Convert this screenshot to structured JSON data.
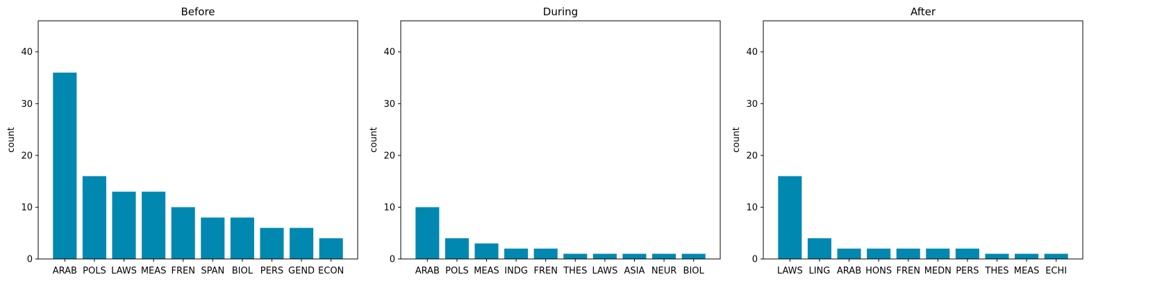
{
  "bar_color": "#0088b0",
  "chart_data": [
    {
      "type": "bar",
      "title": "Before",
      "xlabel": "",
      "ylabel": "count",
      "ylim": [
        0,
        46
      ],
      "yticks": [
        0,
        10,
        20,
        30,
        40
      ],
      "grid": false,
      "categories": [
        "ARAB",
        "POLS",
        "LAWS",
        "MEAS",
        "FREN",
        "SPAN",
        "BIOL",
        "PERS",
        "GEND",
        "ECON"
      ],
      "values": [
        36,
        16,
        13,
        13,
        10,
        8,
        8,
        6,
        6,
        4
      ]
    },
    {
      "type": "bar",
      "title": "During",
      "xlabel": "",
      "ylabel": "count",
      "ylim": [
        0,
        46
      ],
      "yticks": [
        0,
        10,
        20,
        30,
        40
      ],
      "grid": false,
      "categories": [
        "ARAB",
        "POLS",
        "MEAS",
        "INDG",
        "FREN",
        "THES",
        "LAWS",
        "ASIA",
        "NEUR",
        "BIOL"
      ],
      "values": [
        10,
        4,
        3,
        2,
        2,
        1,
        1,
        1,
        1,
        1
      ]
    },
    {
      "type": "bar",
      "title": "After",
      "xlabel": "",
      "ylabel": "count",
      "ylim": [
        0,
        46
      ],
      "yticks": [
        0,
        10,
        20,
        30,
        40
      ],
      "grid": false,
      "categories": [
        "LAWS",
        "LING",
        "ARAB",
        "HONS",
        "FREN",
        "MEDN",
        "PERS",
        "THES",
        "MEAS",
        "ECHI"
      ],
      "values": [
        16,
        4,
        2,
        2,
        2,
        2,
        2,
        1,
        1,
        1
      ]
    }
  ]
}
